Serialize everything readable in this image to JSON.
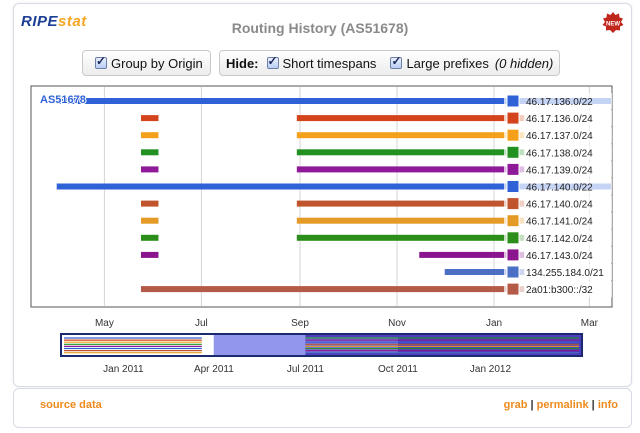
{
  "logo": {
    "ripe": "RIPE",
    "stat": "stat"
  },
  "title": "Routing History (AS51678)",
  "badge": "NEW",
  "controls": {
    "group_by_origin": "Group by Origin",
    "hide_label": "Hide:",
    "short_timespans": "Short timespans",
    "large_prefixes": "Large prefixes",
    "hidden_note": "(0 hidden)"
  },
  "colors": {
    "accent": "#2f62d6",
    "frame": "#d7dbe3",
    "link": "#ee8a1c"
  },
  "chart_data": {
    "type": "timeline",
    "x_tick_labels": [
      "May",
      "Jul",
      "Sep",
      "Nov",
      "Jan",
      "Mar"
    ],
    "overview_tick_labels": [
      "Jan 2011",
      "Apr 2011",
      "Jul 2011",
      "Oct 2011",
      "Jan 2012"
    ],
    "origin_label": "AS51678",
    "rows": [
      {
        "prefix": "46.17.136.0/22",
        "color": "#2f62d6",
        "segments": [
          [
            "2011-04-01",
            "2012-01-20"
          ]
        ]
      },
      {
        "prefix": "46.17.136.0/24",
        "color": "#d4441c",
        "segments": [
          [
            "2011-05-24",
            "2011-06-04"
          ],
          [
            "2011-08-30",
            "2012-01-20"
          ]
        ]
      },
      {
        "prefix": "46.17.137.0/24",
        "color": "#f5a01a",
        "segments": [
          [
            "2011-05-24",
            "2011-06-04"
          ],
          [
            "2011-08-30",
            "2012-01-20"
          ]
        ]
      },
      {
        "prefix": "46.17.138.0/24",
        "color": "#229122",
        "segments": [
          [
            "2011-05-24",
            "2011-06-04"
          ],
          [
            "2011-08-30",
            "2012-01-20"
          ]
        ]
      },
      {
        "prefix": "46.17.139.0/24",
        "color": "#8e1a9a",
        "segments": [
          [
            "2011-05-24",
            "2011-06-04"
          ],
          [
            "2011-08-30",
            "2012-01-20"
          ]
        ]
      },
      {
        "prefix": "46.17.140.0/22",
        "color": "#2f62d6",
        "segments": [
          [
            "2011-04-01",
            "2012-01-20"
          ]
        ]
      },
      {
        "prefix": "46.17.140.0/24",
        "color": "#c0542c",
        "segments": [
          [
            "2011-05-24",
            "2011-06-04"
          ],
          [
            "2011-08-30",
            "2012-01-20"
          ]
        ]
      },
      {
        "prefix": "46.17.141.0/24",
        "color": "#e39b26",
        "segments": [
          [
            "2011-05-24",
            "2011-06-04"
          ],
          [
            "2011-08-30",
            "2012-01-20"
          ]
        ]
      },
      {
        "prefix": "46.17.142.0/24",
        "color": "#2b8d1a",
        "segments": [
          [
            "2011-05-24",
            "2011-06-04"
          ],
          [
            "2011-08-30",
            "2012-01-20"
          ]
        ]
      },
      {
        "prefix": "46.17.143.0/24",
        "color": "#8a158e",
        "segments": [
          [
            "2011-05-24",
            "2011-06-04"
          ],
          [
            "2011-11-15",
            "2012-01-20"
          ]
        ]
      },
      {
        "prefix": "134.255.184.0/21",
        "color": "#4a6fc4",
        "segments": [
          [
            "2011-12-01",
            "2012-01-20"
          ]
        ]
      },
      {
        "prefix": "2a01:b300::/32",
        "color": "#b45a48",
        "segments": [
          [
            "2011-05-24",
            "2012-01-20"
          ]
        ]
      }
    ]
  },
  "footer": {
    "source": "source data",
    "grab": "grab",
    "sep1": " | ",
    "permalink": "permalink",
    "sep2": " | ",
    "info": "info"
  }
}
